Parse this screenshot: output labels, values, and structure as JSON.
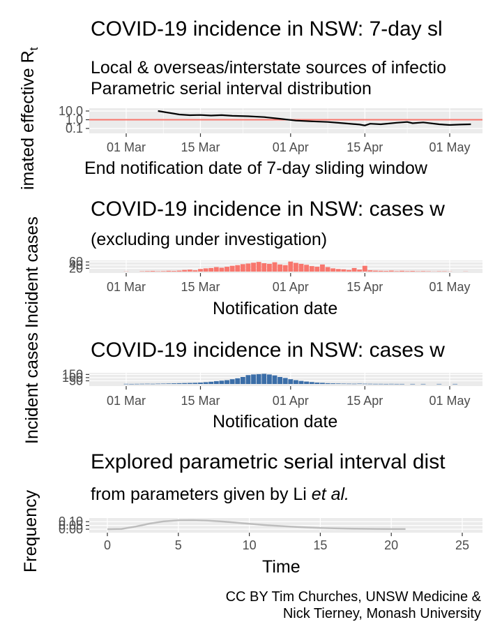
{
  "panel1": {
    "title": "COVID-19 incidence in NSW: 7-day sl",
    "subtitle_line1": "Local & overseas/interstate sources of infectio",
    "subtitle_line2": "Parametric serial interval distribution",
    "ylabel_main": "imated effective R",
    "ylabel_sub": "t",
    "xlabel": "End notification date of 7-day sliding window"
  },
  "panel2": {
    "title": "COVID-19 incidence in NSW: cases w",
    "subtitle": "(excluding under investigation)",
    "ylabel": "Incident cases",
    "xlabel": "Notification date"
  },
  "panel3": {
    "title": "COVID-19 incidence in NSW: cases w",
    "ylabel": "Incident cases",
    "xlabel": "Notification date"
  },
  "panel4": {
    "title": "Explored parametric serial interval dist",
    "subtitle_text": "from parameters given by Li ",
    "subtitle_italic": "et al.",
    "ylabel": "Frequency",
    "xlabel": "Time"
  },
  "caption": {
    "line1": "CC BY Tim Churches, UNSW Medicine &",
    "line2": "Nick Tierney, Monash University"
  },
  "colors": {
    "reference_line": "#f8766d",
    "local_bars": "#f8766d",
    "overseas_bars": "#3b6ea8",
    "rt_line": "#000000",
    "si_curve": "#bdbdbd",
    "panel_bg": "#ebebeb",
    "grid": "#ffffff"
  },
  "chart_data": [
    {
      "type": "line",
      "panel": "panel1",
      "x_ticks": [
        "01 Mar",
        "15 Mar",
        "01 Apr",
        "15 Apr",
        "01 May"
      ],
      "y_ticks": [
        "0.1",
        "1.0",
        "10.0"
      ],
      "y_scale": "log",
      "reference_line": 1.0,
      "x": [
        "2020-03-07",
        "2020-03-11",
        "2020-03-13",
        "2020-03-15",
        "2020-03-17",
        "2020-03-19",
        "2020-03-21",
        "2020-03-24",
        "2020-03-27",
        "2020-03-30",
        "2020-04-02",
        "2020-04-05",
        "2020-04-08",
        "2020-04-11",
        "2020-04-14",
        "2020-04-15",
        "2020-04-16",
        "2020-04-18",
        "2020-04-21",
        "2020-04-23",
        "2020-04-24",
        "2020-04-26",
        "2020-04-29",
        "2020-05-01",
        "2020-05-03",
        "2020-05-05"
      ],
      "values": [
        10,
        4,
        3.3,
        3.5,
        3.0,
        3.4,
        2.8,
        2.5,
        2.0,
        1.3,
        0.8,
        0.65,
        0.55,
        0.4,
        0.28,
        0.22,
        0.35,
        0.3,
        0.45,
        0.55,
        0.4,
        0.5,
        0.3,
        0.25,
        0.28,
        0.3
      ]
    },
    {
      "type": "bar",
      "panel": "panel2",
      "y_ticks": [
        "20",
        "40",
        "60"
      ],
      "x_ticks": [
        "01 Mar",
        "15 Mar",
        "01 Apr",
        "15 Apr",
        "01 May"
      ],
      "categories": [
        "2020-03-01",
        "2020-03-02",
        "2020-03-03",
        "2020-03-04",
        "2020-03-05",
        "2020-03-06",
        "2020-03-07",
        "2020-03-08",
        "2020-03-09",
        "2020-03-10",
        "2020-03-11",
        "2020-03-12",
        "2020-03-13",
        "2020-03-14",
        "2020-03-15",
        "2020-03-16",
        "2020-03-17",
        "2020-03-18",
        "2020-03-19",
        "2020-03-20",
        "2020-03-21",
        "2020-03-22",
        "2020-03-23",
        "2020-03-24",
        "2020-03-25",
        "2020-03-26",
        "2020-03-27",
        "2020-03-28",
        "2020-03-29",
        "2020-03-30",
        "2020-03-31",
        "2020-04-01",
        "2020-04-02",
        "2020-04-03",
        "2020-04-04",
        "2020-04-05",
        "2020-04-06",
        "2020-04-07",
        "2020-04-08",
        "2020-04-09",
        "2020-04-10",
        "2020-04-11",
        "2020-04-12",
        "2020-04-13",
        "2020-04-14",
        "2020-04-15",
        "2020-04-16",
        "2020-04-17",
        "2020-04-18",
        "2020-04-19",
        "2020-04-20",
        "2020-04-21",
        "2020-04-22",
        "2020-04-23",
        "2020-04-24",
        "2020-04-25",
        "2020-04-26",
        "2020-04-27",
        "2020-04-28",
        "2020-04-29",
        "2020-04-30",
        "2020-05-01",
        "2020-05-02",
        "2020-05-03",
        "2020-05-04",
        "2020-05-05"
      ],
      "values": [
        1,
        0,
        0,
        2,
        3,
        4,
        2,
        3,
        5,
        4,
        6,
        10,
        12,
        8,
        16,
        20,
        22,
        28,
        24,
        30,
        36,
        40,
        46,
        50,
        55,
        60,
        52,
        48,
        58,
        44,
        40,
        62,
        54,
        48,
        42,
        34,
        30,
        44,
        28,
        20,
        16,
        14,
        10,
        22,
        12,
        36,
        8,
        6,
        5,
        4,
        6,
        3,
        5,
        3,
        4,
        2,
        3,
        2,
        1,
        2,
        2,
        1,
        0,
        0,
        1,
        0
      ]
    },
    {
      "type": "bar",
      "panel": "panel3",
      "y_ticks": [
        "50",
        "100",
        "150"
      ],
      "x_ticks": [
        "01 Mar",
        "15 Mar",
        "01 Apr",
        "15 Apr",
        "01 May"
      ],
      "categories": [
        "2020-03-01",
        "2020-03-02",
        "2020-03-03",
        "2020-03-04",
        "2020-03-05",
        "2020-03-06",
        "2020-03-07",
        "2020-03-08",
        "2020-03-09",
        "2020-03-10",
        "2020-03-11",
        "2020-03-12",
        "2020-03-13",
        "2020-03-14",
        "2020-03-15",
        "2020-03-16",
        "2020-03-17",
        "2020-03-18",
        "2020-03-19",
        "2020-03-20",
        "2020-03-21",
        "2020-03-22",
        "2020-03-23",
        "2020-03-24",
        "2020-03-25",
        "2020-03-26",
        "2020-03-27",
        "2020-03-28",
        "2020-03-29",
        "2020-03-30",
        "2020-03-31",
        "2020-04-01",
        "2020-04-02",
        "2020-04-03",
        "2020-04-04",
        "2020-04-05",
        "2020-04-06",
        "2020-04-07",
        "2020-04-08",
        "2020-04-09",
        "2020-04-10",
        "2020-04-11",
        "2020-04-12",
        "2020-04-13",
        "2020-04-14",
        "2020-04-15",
        "2020-04-16",
        "2020-04-17",
        "2020-04-18",
        "2020-04-19",
        "2020-04-20",
        "2020-04-21",
        "2020-04-22",
        "2020-04-23",
        "2020-04-24",
        "2020-04-25",
        "2020-04-26",
        "2020-04-27",
        "2020-04-28",
        "2020-04-29",
        "2020-04-30",
        "2020-05-01",
        "2020-05-02",
        "2020-05-03",
        "2020-05-04",
        "2020-05-05"
      ],
      "values": [
        2,
        1,
        2,
        3,
        4,
        3,
        5,
        6,
        8,
        10,
        12,
        14,
        16,
        18,
        22,
        28,
        35,
        45,
        52,
        60,
        75,
        90,
        110,
        140,
        150,
        155,
        160,
        150,
        135,
        110,
        95,
        75,
        60,
        48,
        38,
        30,
        22,
        18,
        12,
        10,
        8,
        6,
        5,
        4,
        6,
        4,
        3,
        2,
        2,
        1,
        2,
        1,
        1,
        0,
        1,
        0,
        1,
        0,
        0,
        1,
        0,
        0,
        1,
        0,
        0,
        0
      ]
    },
    {
      "type": "line",
      "panel": "panel4",
      "x_ticks": [
        "0",
        "5",
        "10",
        "15",
        "20",
        "25"
      ],
      "y_ticks": [
        "0.00",
        "0.05",
        "0.10"
      ],
      "xlim": [
        -1,
        26
      ],
      "ylim": [
        0,
        0.13
      ],
      "x": [
        0,
        1,
        2,
        3,
        4,
        5,
        6,
        7,
        8,
        9,
        10,
        11,
        12,
        13,
        14,
        15,
        16,
        17,
        18,
        19,
        20,
        21
      ],
      "values": [
        0.0,
        0.004,
        0.035,
        0.075,
        0.105,
        0.118,
        0.12,
        0.115,
        0.103,
        0.088,
        0.072,
        0.057,
        0.044,
        0.033,
        0.024,
        0.017,
        0.012,
        0.008,
        0.006,
        0.004,
        0.003,
        0.002
      ]
    }
  ]
}
